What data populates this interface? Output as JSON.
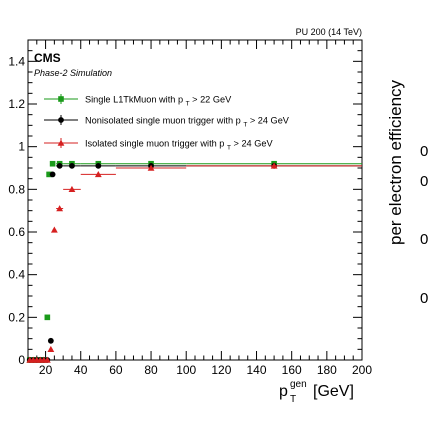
{
  "chart_data": {
    "type": "scatter",
    "top_right_label": "PU 200 (14 TeV)",
    "cms_label": "CMS",
    "cms_sublabel": "Phase-2 Simulation",
    "xlabel_main": "p",
    "xlabel_sup": "gen",
    "xlabel_sub": "T",
    "xlabel_unit": "[GeV]",
    "right_label": "per electron efficiency",
    "right_tick_fragments": [
      "0",
      "0",
      "0",
      "0"
    ],
    "xlim": [
      10,
      200
    ],
    "ylim": [
      0,
      1.5
    ],
    "x_ticks": [
      "20",
      "40",
      "60",
      "80",
      "100",
      "120",
      "140",
      "160",
      "180",
      "200"
    ],
    "y_ticks": [
      "0",
      "0.2",
      "0.4",
      "0.6",
      "0.8",
      "1",
      "1.2",
      "1.4"
    ],
    "series": [
      {
        "name": "Single L1TkMuon with p",
        "name_sub": "T",
        "name_suffix": "> 22 GeV",
        "color": "#1a9a1a",
        "marker": "square",
        "points": [
          {
            "x": 11,
            "xerr": 1,
            "y": 0.0
          },
          {
            "x": 13,
            "xerr": 1,
            "y": 0.0
          },
          {
            "x": 15,
            "xerr": 1,
            "y": 0.0
          },
          {
            "x": 17,
            "xerr": 1,
            "y": 0.0
          },
          {
            "x": 19,
            "xerr": 1,
            "y": 0.0
          },
          {
            "x": 21,
            "xerr": 1,
            "y": 0.2
          },
          {
            "x": 22,
            "xerr": 1,
            "y": 0.87
          },
          {
            "x": 24,
            "xerr": 1,
            "y": 0.92
          },
          {
            "x": 28,
            "xerr": 2,
            "y": 0.92
          },
          {
            "x": 35,
            "xerr": 5,
            "y": 0.92
          },
          {
            "x": 50,
            "xerr": 10,
            "y": 0.92
          },
          {
            "x": 80,
            "xerr": 20,
            "y": 0.92
          },
          {
            "x": 150,
            "xerr": 50,
            "y": 0.92
          }
        ]
      },
      {
        "name": "Nonisolated single muon trigger with p",
        "name_sub": "T",
        "name_suffix": "> 24 GeV",
        "color": "#000000",
        "marker": "circle",
        "points": [
          {
            "x": 11,
            "xerr": 1,
            "y": 0.0
          },
          {
            "x": 13,
            "xerr": 1,
            "y": 0.0
          },
          {
            "x": 15,
            "xerr": 1,
            "y": 0.0
          },
          {
            "x": 17,
            "xerr": 1,
            "y": 0.0
          },
          {
            "x": 19,
            "xerr": 1,
            "y": 0.0
          },
          {
            "x": 21,
            "xerr": 1,
            "y": 0.0
          },
          {
            "x": 23,
            "xerr": 1,
            "y": 0.09
          },
          {
            "x": 24,
            "xerr": 1,
            "y": 0.87
          },
          {
            "x": 28,
            "xerr": 2,
            "y": 0.91
          },
          {
            "x": 35,
            "xerr": 5,
            "y": 0.91
          },
          {
            "x": 50,
            "xerr": 10,
            "y": 0.91
          },
          {
            "x": 80,
            "xerr": 20,
            "y": 0.91
          },
          {
            "x": 150,
            "xerr": 50,
            "y": 0.91
          }
        ]
      },
      {
        "name": "Isolated single muon trigger with p",
        "name_sub": "T",
        "name_suffix": "> 24 GeV",
        "color": "#d62020",
        "marker": "triangle",
        "points": [
          {
            "x": 11,
            "xerr": 1,
            "y": 0.0
          },
          {
            "x": 13,
            "xerr": 1,
            "y": 0.0
          },
          {
            "x": 15,
            "xerr": 1,
            "y": 0.0
          },
          {
            "x": 17,
            "xerr": 1,
            "y": 0.0
          },
          {
            "x": 19,
            "xerr": 1,
            "y": 0.0
          },
          {
            "x": 21,
            "xerr": 1,
            "y": 0.0
          },
          {
            "x": 23,
            "xerr": 1,
            "y": 0.05
          },
          {
            "x": 25,
            "xerr": 1,
            "y": 0.61
          },
          {
            "x": 28,
            "xerr": 2,
            "y": 0.71
          },
          {
            "x": 35,
            "xerr": 5,
            "y": 0.8
          },
          {
            "x": 50,
            "xerr": 10,
            "y": 0.87
          },
          {
            "x": 80,
            "xerr": 20,
            "y": 0.9
          },
          {
            "x": 150,
            "xerr": 50,
            "y": 0.91
          }
        ]
      }
    ]
  }
}
